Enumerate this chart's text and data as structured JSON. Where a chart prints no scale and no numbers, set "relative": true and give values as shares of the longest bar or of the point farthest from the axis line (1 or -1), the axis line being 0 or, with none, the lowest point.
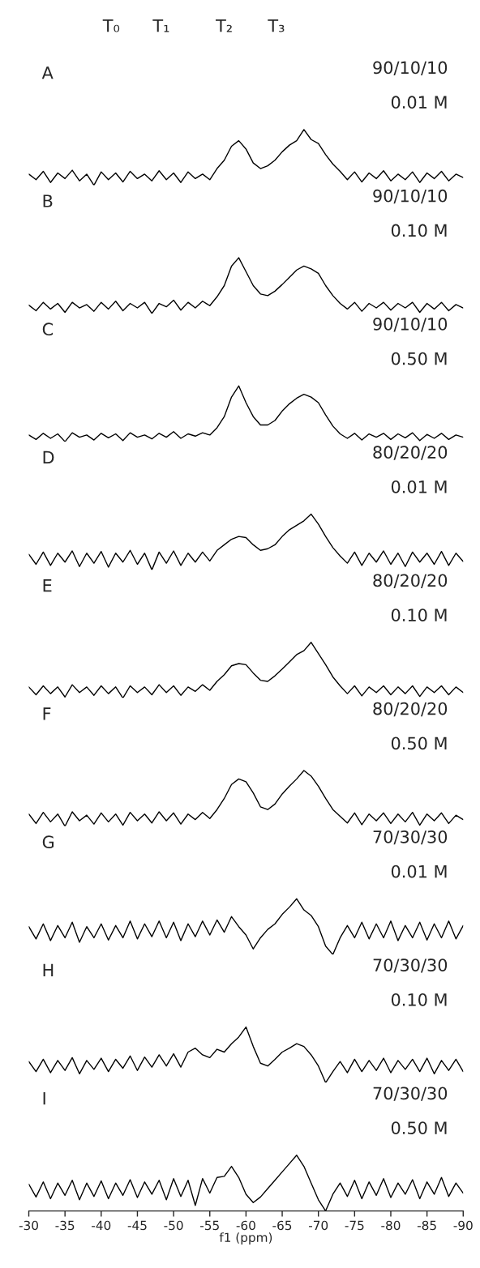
{
  "chart_data": [
    {
      "type": "line",
      "relative": true,
      "tick_labels": false,
      "xlim": [
        -30,
        -90
      ],
      "annotations": [
        "A",
        "90/10/10",
        "0.01 M",
        "T₀",
        "T₁",
        "T₂",
        "T₃"
      ],
      "x": [
        -30,
        -31,
        -32,
        -33,
        -34,
        -35,
        -36,
        -37,
        -38,
        -39,
        -40,
        -41,
        -42,
        -43,
        -44,
        -45,
        -46,
        -47,
        -48,
        -49,
        -50,
        -51,
        -52,
        -53,
        -54,
        -55,
        -56,
        -57,
        -58,
        -59,
        -60,
        -61,
        -62,
        -63,
        -64,
        -65,
        -66,
        -67,
        -68,
        -69,
        -70,
        -71,
        -72,
        -73,
        -74,
        -75,
        -76,
        -77,
        -78,
        -79,
        -80,
        -81,
        -82,
        -83,
        -84,
        -85,
        -86,
        -87,
        -88,
        -89,
        -90
      ],
      "series": [
        {
          "color": "#000000",
          "values": [
            0.2,
            0.1,
            0.25,
            0.05,
            0.22,
            0.12,
            0.27,
            0.08,
            0.2,
            0.0,
            0.24,
            0.1,
            0.22,
            0.06,
            0.25,
            0.12,
            0.2,
            0.08,
            0.26,
            0.1,
            0.22,
            0.05,
            0.24,
            0.12,
            0.2,
            0.1,
            0.3,
            0.45,
            0.7,
            0.8,
            0.65,
            0.4,
            0.3,
            0.35,
            0.45,
            0.6,
            0.72,
            0.8,
            1.0,
            0.82,
            0.75,
            0.55,
            0.38,
            0.25,
            0.1,
            0.24,
            0.06,
            0.22,
            0.12,
            0.26,
            0.08,
            0.2,
            0.1,
            0.24,
            0.05,
            0.22,
            0.12,
            0.25,
            0.08,
            0.2,
            0.14
          ]
        }
      ]
    },
    {
      "type": "line",
      "relative": true,
      "tick_labels": false,
      "xlim": [
        -30,
        -90
      ],
      "annotations": [
        "B",
        "90/10/10",
        "0.10 M"
      ],
      "x": [
        -30,
        -31,
        -32,
        -33,
        -34,
        -35,
        -36,
        -37,
        -38,
        -39,
        -40,
        -41,
        -42,
        -43,
        -44,
        -45,
        -46,
        -47,
        -48,
        -49,
        -50,
        -51,
        -52,
        -53,
        -54,
        -55,
        -56,
        -57,
        -58,
        -59,
        -60,
        -61,
        -62,
        -63,
        -64,
        -65,
        -66,
        -67,
        -68,
        -69,
        -70,
        -71,
        -72,
        -73,
        -74,
        -75,
        -76,
        -77,
        -78,
        -79,
        -80,
        -81,
        -82,
        -83,
        -84,
        -85,
        -86,
        -87,
        -88,
        -89,
        -90
      ],
      "series": [
        {
          "color": "#000000",
          "values": [
            0.15,
            0.05,
            0.2,
            0.08,
            0.18,
            0.02,
            0.2,
            0.1,
            0.16,
            0.04,
            0.2,
            0.08,
            0.22,
            0.05,
            0.18,
            0.1,
            0.2,
            0.0,
            0.18,
            0.12,
            0.24,
            0.06,
            0.2,
            0.1,
            0.22,
            0.14,
            0.3,
            0.5,
            0.85,
            1.0,
            0.75,
            0.5,
            0.35,
            0.32,
            0.4,
            0.52,
            0.65,
            0.78,
            0.85,
            0.8,
            0.72,
            0.5,
            0.32,
            0.18,
            0.08,
            0.2,
            0.04,
            0.18,
            0.1,
            0.2,
            0.06,
            0.18,
            0.1,
            0.2,
            0.02,
            0.18,
            0.08,
            0.2,
            0.05,
            0.16,
            0.1
          ]
        }
      ]
    },
    {
      "type": "line",
      "relative": true,
      "tick_labels": false,
      "xlim": [
        -30,
        -90
      ],
      "annotations": [
        "C",
        "90/10/10",
        "0.50 M"
      ],
      "x": [
        -30,
        -31,
        -32,
        -33,
        -34,
        -35,
        -36,
        -37,
        -38,
        -39,
        -40,
        -41,
        -42,
        -43,
        -44,
        -45,
        -46,
        -47,
        -48,
        -49,
        -50,
        -51,
        -52,
        -53,
        -54,
        -55,
        -56,
        -57,
        -58,
        -59,
        -60,
        -61,
        -62,
        -63,
        -64,
        -65,
        -66,
        -67,
        -68,
        -69,
        -70,
        -71,
        -72,
        -73,
        -74,
        -75,
        -76,
        -77,
        -78,
        -79,
        -80,
        -81,
        -82,
        -83,
        -84,
        -85,
        -86,
        -87,
        -88,
        -89,
        -90
      ],
      "series": [
        {
          "color": "#000000",
          "values": [
            0.12,
            0.04,
            0.15,
            0.06,
            0.14,
            0.0,
            0.16,
            0.08,
            0.12,
            0.03,
            0.15,
            0.07,
            0.14,
            0.02,
            0.16,
            0.08,
            0.12,
            0.05,
            0.15,
            0.08,
            0.18,
            0.06,
            0.14,
            0.1,
            0.16,
            0.12,
            0.25,
            0.45,
            0.8,
            1.0,
            0.7,
            0.45,
            0.3,
            0.3,
            0.38,
            0.55,
            0.68,
            0.78,
            0.85,
            0.8,
            0.7,
            0.48,
            0.28,
            0.14,
            0.06,
            0.15,
            0.03,
            0.14,
            0.08,
            0.15,
            0.04,
            0.14,
            0.07,
            0.16,
            0.02,
            0.13,
            0.06,
            0.15,
            0.04,
            0.12,
            0.08
          ]
        }
      ]
    },
    {
      "type": "line",
      "relative": true,
      "tick_labels": false,
      "xlim": [
        -30,
        -90
      ],
      "annotations": [
        "D",
        "80/20/20",
        "0.01 M"
      ],
      "x": [
        -30,
        -31,
        -32,
        -33,
        -34,
        -35,
        -36,
        -37,
        -38,
        -39,
        -40,
        -41,
        -42,
        -43,
        -44,
        -45,
        -46,
        -47,
        -48,
        -49,
        -50,
        -51,
        -52,
        -53,
        -54,
        -55,
        -56,
        -57,
        -58,
        -59,
        -60,
        -61,
        -62,
        -63,
        -64,
        -65,
        -66,
        -67,
        -68,
        -69,
        -70,
        -71,
        -72,
        -73,
        -74,
        -75,
        -76,
        -77,
        -78,
        -79,
        -80,
        -81,
        -82,
        -83,
        -84,
        -85,
        -86,
        -87,
        -88,
        -89,
        -90
      ],
      "series": [
        {
          "color": "#000000",
          "values": [
            0.28,
            0.1,
            0.32,
            0.08,
            0.3,
            0.14,
            0.34,
            0.06,
            0.3,
            0.12,
            0.33,
            0.05,
            0.3,
            0.14,
            0.35,
            0.1,
            0.3,
            0.0,
            0.32,
            0.12,
            0.34,
            0.08,
            0.3,
            0.14,
            0.32,
            0.16,
            0.35,
            0.45,
            0.55,
            0.6,
            0.58,
            0.45,
            0.35,
            0.38,
            0.45,
            0.6,
            0.72,
            0.8,
            0.88,
            1.0,
            0.82,
            0.6,
            0.4,
            0.25,
            0.12,
            0.32,
            0.08,
            0.3,
            0.14,
            0.34,
            0.1,
            0.3,
            0.06,
            0.32,
            0.14,
            0.3,
            0.1,
            0.33,
            0.08,
            0.3,
            0.15
          ]
        }
      ]
    },
    {
      "type": "line",
      "relative": true,
      "tick_labels": false,
      "xlim": [
        -30,
        -90
      ],
      "annotations": [
        "E",
        "80/20/20",
        "0.10 M"
      ],
      "x": [
        -30,
        -31,
        -32,
        -33,
        -34,
        -35,
        -36,
        -37,
        -38,
        -39,
        -40,
        -41,
        -42,
        -43,
        -44,
        -45,
        -46,
        -47,
        -48,
        -49,
        -50,
        -51,
        -52,
        -53,
        -54,
        -55,
        -56,
        -57,
        -58,
        -59,
        -60,
        -61,
        -62,
        -63,
        -64,
        -65,
        -66,
        -67,
        -68,
        -69,
        -70,
        -71,
        -72,
        -73,
        -74,
        -75,
        -76,
        -77,
        -78,
        -79,
        -80,
        -81,
        -82,
        -83,
        -84,
        -85,
        -86,
        -87,
        -88,
        -89,
        -90
      ],
      "series": [
        {
          "color": "#000000",
          "values": [
            0.2,
            0.06,
            0.22,
            0.08,
            0.2,
            0.02,
            0.24,
            0.1,
            0.2,
            0.05,
            0.22,
            0.08,
            0.2,
            0.0,
            0.22,
            0.1,
            0.2,
            0.06,
            0.24,
            0.1,
            0.22,
            0.05,
            0.2,
            0.12,
            0.24,
            0.14,
            0.3,
            0.42,
            0.58,
            0.62,
            0.6,
            0.45,
            0.32,
            0.3,
            0.4,
            0.52,
            0.65,
            0.78,
            0.85,
            1.0,
            0.8,
            0.6,
            0.38,
            0.22,
            0.08,
            0.22,
            0.04,
            0.2,
            0.1,
            0.22,
            0.06,
            0.2,
            0.08,
            0.22,
            0.03,
            0.2,
            0.1,
            0.22,
            0.06,
            0.2,
            0.1
          ]
        }
      ]
    },
    {
      "type": "line",
      "relative": true,
      "tick_labels": false,
      "xlim": [
        -30,
        -90
      ],
      "annotations": [
        "F",
        "80/20/20",
        "0.50 M"
      ],
      "x": [
        -30,
        -31,
        -32,
        -33,
        -34,
        -35,
        -36,
        -37,
        -38,
        -39,
        -40,
        -41,
        -42,
        -43,
        -44,
        -45,
        -46,
        -47,
        -48,
        -49,
        -50,
        -51,
        -52,
        -53,
        -54,
        -55,
        -56,
        -57,
        -58,
        -59,
        -60,
        -61,
        -62,
        -63,
        -64,
        -65,
        -66,
        -67,
        -68,
        -69,
        -70,
        -71,
        -72,
        -73,
        -74,
        -75,
        -76,
        -77,
        -78,
        -79,
        -80,
        -81,
        -82,
        -83,
        -84,
        -85,
        -86,
        -87,
        -88,
        -89,
        -90
      ],
      "series": [
        {
          "color": "#000000",
          "values": [
            0.22,
            0.05,
            0.25,
            0.08,
            0.22,
            0.0,
            0.26,
            0.1,
            0.2,
            0.04,
            0.24,
            0.08,
            0.22,
            0.02,
            0.25,
            0.1,
            0.22,
            0.06,
            0.26,
            0.1,
            0.24,
            0.04,
            0.22,
            0.12,
            0.25,
            0.14,
            0.3,
            0.5,
            0.75,
            0.85,
            0.8,
            0.6,
            0.35,
            0.3,
            0.4,
            0.58,
            0.72,
            0.85,
            1.0,
            0.9,
            0.72,
            0.5,
            0.3,
            0.18,
            0.06,
            0.24,
            0.03,
            0.22,
            0.1,
            0.24,
            0.05,
            0.22,
            0.08,
            0.25,
            0.02,
            0.22,
            0.1,
            0.24,
            0.05,
            0.2,
            0.12
          ]
        }
      ]
    },
    {
      "type": "line",
      "relative": true,
      "tick_labels": false,
      "xlim": [
        -30,
        -90
      ],
      "annotations": [
        "G",
        "70/30/30",
        "0.01 M"
      ],
      "x": [
        -30,
        -31,
        -32,
        -33,
        -34,
        -35,
        -36,
        -37,
        -38,
        -39,
        -40,
        -41,
        -42,
        -43,
        -44,
        -45,
        -46,
        -47,
        -48,
        -49,
        -50,
        -51,
        -52,
        -53,
        -54,
        -55,
        -56,
        -57,
        -58,
        -59,
        -60,
        -61,
        -62,
        -63,
        -64,
        -65,
        -66,
        -67,
        -68,
        -69,
        -70,
        -71,
        -72,
        -73,
        -74,
        -75,
        -76,
        -77,
        -78,
        -79,
        -80,
        -81,
        -82,
        -83,
        -84,
        -85,
        -86,
        -87,
        -88,
        -89,
        -90
      ],
      "series": [
        {
          "color": "#000000",
          "values": [
            0.5,
            0.28,
            0.55,
            0.25,
            0.52,
            0.3,
            0.58,
            0.22,
            0.5,
            0.3,
            0.55,
            0.26,
            0.52,
            0.3,
            0.6,
            0.28,
            0.55,
            0.32,
            0.6,
            0.3,
            0.58,
            0.25,
            0.55,
            0.32,
            0.6,
            0.35,
            0.62,
            0.4,
            0.68,
            0.5,
            0.35,
            0.1,
            0.3,
            0.45,
            0.55,
            0.72,
            0.85,
            1.0,
            0.8,
            0.7,
            0.5,
            0.15,
            0.0,
            0.3,
            0.52,
            0.3,
            0.58,
            0.28,
            0.55,
            0.3,
            0.6,
            0.25,
            0.52,
            0.3,
            0.58,
            0.26,
            0.55,
            0.3,
            0.6,
            0.28,
            0.52
          ]
        }
      ]
    },
    {
      "type": "line",
      "relative": true,
      "tick_labels": false,
      "xlim": [
        -30,
        -90
      ],
      "annotations": [
        "H",
        "70/30/30",
        "0.10 M"
      ],
      "x": [
        -30,
        -31,
        -32,
        -33,
        -34,
        -35,
        -36,
        -37,
        -38,
        -39,
        -40,
        -41,
        -42,
        -43,
        -44,
        -45,
        -46,
        -47,
        -48,
        -49,
        -50,
        -51,
        -52,
        -53,
        -54,
        -55,
        -56,
        -57,
        -58,
        -59,
        -60,
        -61,
        -62,
        -63,
        -64,
        -65,
        -66,
        -67,
        -68,
        -69,
        -70,
        -71,
        -72,
        -73,
        -74,
        -75,
        -76,
        -77,
        -78,
        -79,
        -80,
        -81,
        -82,
        -83,
        -84,
        -85,
        -86,
        -87,
        -88,
        -89,
        -90
      ],
      "series": [
        {
          "color": "#000000",
          "values": [
            0.38,
            0.2,
            0.42,
            0.18,
            0.4,
            0.22,
            0.45,
            0.16,
            0.4,
            0.24,
            0.44,
            0.2,
            0.42,
            0.26,
            0.48,
            0.22,
            0.46,
            0.28,
            0.5,
            0.3,
            0.52,
            0.28,
            0.55,
            0.62,
            0.5,
            0.45,
            0.6,
            0.55,
            0.7,
            0.82,
            1.0,
            0.65,
            0.35,
            0.3,
            0.42,
            0.55,
            0.62,
            0.7,
            0.65,
            0.5,
            0.3,
            0.0,
            0.2,
            0.38,
            0.18,
            0.42,
            0.2,
            0.4,
            0.22,
            0.44,
            0.18,
            0.4,
            0.24,
            0.42,
            0.2,
            0.44,
            0.16,
            0.4,
            0.22,
            0.42,
            0.2
          ]
        }
      ]
    },
    {
      "type": "line",
      "relative": true,
      "tick_labels": "x",
      "xlim": [
        -30,
        -90
      ],
      "xticks": [
        -30,
        -35,
        -40,
        -45,
        -50,
        -55,
        -60,
        -65,
        -70,
        -75,
        -80,
        -85,
        -90
      ],
      "xlabel": "f1 (ppm)",
      "annotations": [
        "I",
        "70/30/30",
        "0.50 M"
      ],
      "x": [
        -30,
        -31,
        -32,
        -33,
        -34,
        -35,
        -36,
        -37,
        -38,
        -39,
        -40,
        -41,
        -42,
        -43,
        -44,
        -45,
        -46,
        -47,
        -48,
        -49,
        -50,
        -51,
        -52,
        -53,
        -54,
        -55,
        -56,
        -57,
        -58,
        -59,
        -60,
        -61,
        -62,
        -63,
        -64,
        -65,
        -66,
        -67,
        -68,
        -69,
        -70,
        -71,
        -72,
        -73,
        -74,
        -75,
        -76,
        -77,
        -78,
        -79,
        -80,
        -81,
        -82,
        -83,
        -84,
        -85,
        -86,
        -87,
        -88,
        -89,
        -90
      ],
      "series": [
        {
          "color": "#000000",
          "values": [
            0.48,
            0.25,
            0.52,
            0.22,
            0.5,
            0.28,
            0.55,
            0.2,
            0.5,
            0.26,
            0.54,
            0.22,
            0.5,
            0.28,
            0.56,
            0.24,
            0.52,
            0.3,
            0.55,
            0.2,
            0.58,
            0.26,
            0.55,
            0.1,
            0.58,
            0.32,
            0.6,
            0.62,
            0.8,
            0.6,
            0.3,
            0.15,
            0.25,
            0.4,
            0.55,
            0.7,
            0.85,
            1.0,
            0.8,
            0.5,
            0.2,
            0.0,
            0.3,
            0.5,
            0.26,
            0.55,
            0.22,
            0.52,
            0.28,
            0.58,
            0.24,
            0.5,
            0.3,
            0.56,
            0.22,
            0.52,
            0.3,
            0.6,
            0.26,
            0.5,
            0.32
          ]
        }
      ]
    }
  ]
}
